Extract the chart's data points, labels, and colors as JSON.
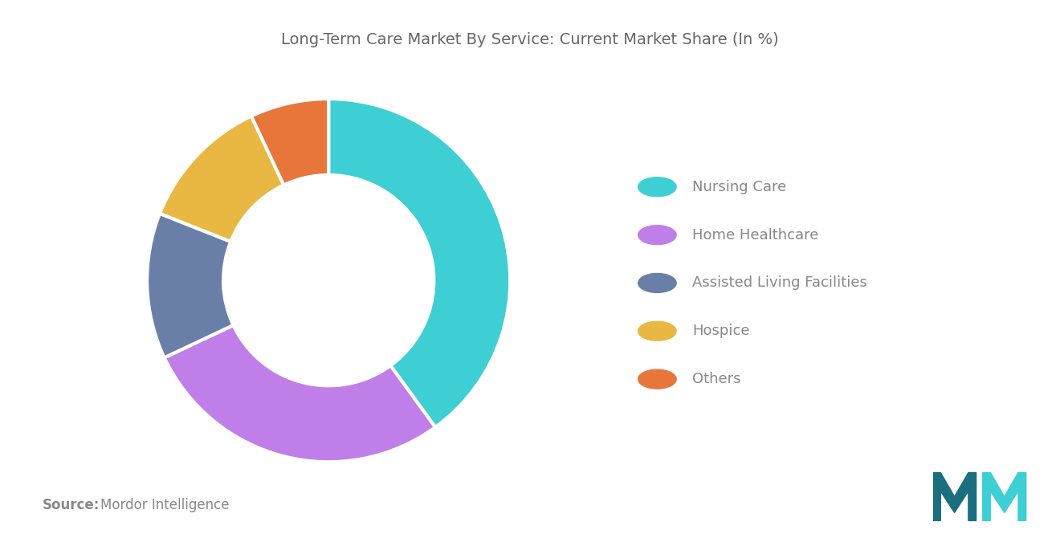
{
  "title": "Long-Term Care Market By Service: Current Market Share (In %)",
  "title_fontsize": 14,
  "title_color": "#666666",
  "labels": [
    "Nursing Care",
    "Home Healthcare",
    "Assisted Living Facilities",
    "Hospice",
    "Others"
  ],
  "values": [
    40,
    28,
    13,
    12,
    7
  ],
  "colors": [
    "#3ECFD4",
    "#C07FE8",
    "#6A7FA8",
    "#E8B842",
    "#E8763A"
  ],
  "donut_width": 0.42,
  "background_color": "#ffffff",
  "source_bold": "Source:",
  "source_normal": "  Mordor Intelligence",
  "source_fontsize": 12,
  "legend_fontsize": 13,
  "legend_color": "#888888",
  "start_angle": 90,
  "logo_color_dark": "#1A6E7E",
  "logo_color_light": "#3ECFD4"
}
